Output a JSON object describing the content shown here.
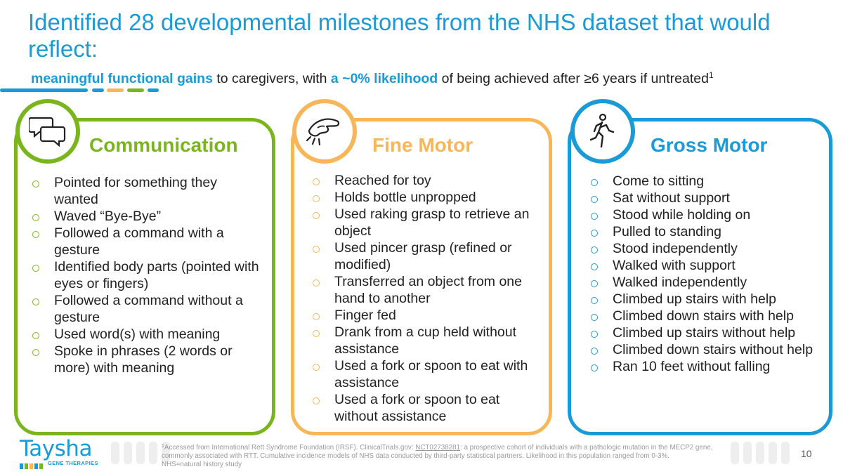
{
  "slide": {
    "title": "Identified 28 developmental milestones from the NHS dataset that would reflect:",
    "subtitle": {
      "highlight_1": "meaningful functional gains",
      "text_1": " to caregivers, with ",
      "highlight_2": "a ~0% likelihood",
      "text_2": " of being achieved after ≥6 years if untreated",
      "superscript": "1"
    },
    "page_number": "10"
  },
  "colors": {
    "communication": "#7ab51d",
    "fine_motor": "#f8b658",
    "gross_motor": "#1a9ad6",
    "accent_blue": "#1a9ad6"
  },
  "communication": {
    "title": "Communication",
    "icon": "speech-bubbles-icon",
    "items": [
      "Pointed for something they wanted",
      "Waved “Bye-Bye”",
      "Followed a command with a gesture",
      "Identified body parts (pointed with eyes or fingers)",
      "Followed a command without a gesture",
      "Used word(s) with meaning",
      "Spoke in phrases (2 words or more) with meaning"
    ]
  },
  "fine_motor": {
    "title": "Fine Motor",
    "icon": "hand-grasp-icon",
    "items": [
      "Reached for toy",
      "Holds bottle unpropped",
      "Used raking grasp to retrieve an object",
      "Used pincer grasp (refined or modified)",
      "Transferred an object from one hand to another",
      "Finger fed",
      "Drank from a cup held without assistance",
      "Used a fork or spoon to eat with assistance",
      "Used a fork or spoon to eat without assistance"
    ]
  },
  "gross_motor": {
    "title": "Gross Motor",
    "icon": "walking-person-icon",
    "items": [
      "Come to sitting",
      "Sat without support",
      "Stood while holding on",
      "Pulled to standing",
      "Stood independently",
      "Walked with support",
      "Walked independently",
      "Climbed up stairs with help",
      "Climbed down stairs with help",
      "Climbed up stairs without help",
      "Climbed down stairs without help",
      "Ran 10 feet without falling"
    ]
  },
  "footer": {
    "logo_word": "Taysha",
    "logo_sub": "GENE THERAPIES",
    "footnote": {
      "superscript": "1",
      "text_1": "Accessed from International Rett Syndrome Foundation (IRSF). ClinicalTrials.gov: ",
      "link": "NCT02738281",
      "text_2": ": a prospective cohort of individuals with a pathologic mutation in the MECP2 gene, commonly associated with RTT. Cumulative incidence models of NHS data conducted by third-party statistical partners. Likelihood in this population ranged from 0-3%.",
      "line_2": "NHS=natural history study"
    }
  }
}
